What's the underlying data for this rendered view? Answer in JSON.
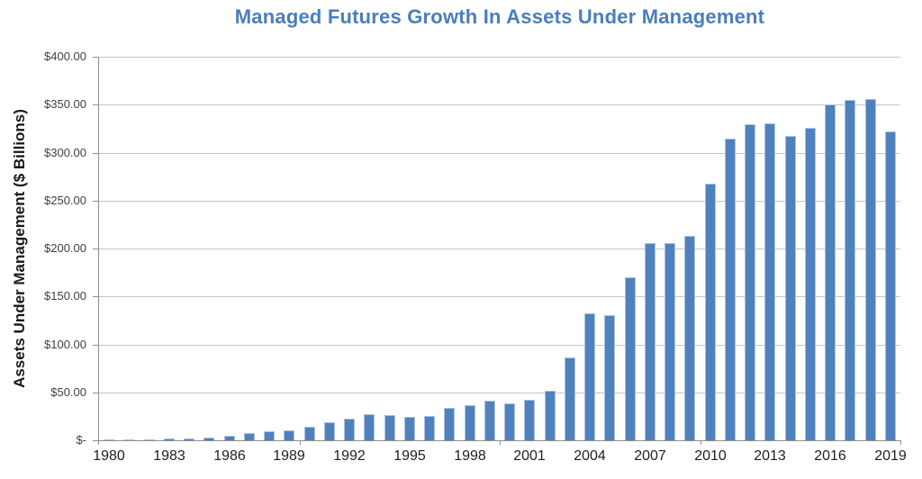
{
  "chart_data": {
    "type": "bar",
    "title": "Managed Futures Growth In Assets Under Management",
    "ylabel": "Assets Under Management ($ Billions)",
    "xlabel": "",
    "legend": "none",
    "grid": "horizontal",
    "ylim": [
      0,
      400
    ],
    "y_tick_step": 50,
    "y_tick_labels": [
      "$-",
      "$50.00",
      "$100.00",
      "$150.00",
      "$200.00",
      "$250.00",
      "$300.00",
      "$350.00",
      "$400.00"
    ],
    "x_tick_labels": [
      "1980",
      "1983",
      "1986",
      "1989",
      "1992",
      "1995",
      "1998",
      "2001",
      "2004",
      "2007",
      "2010",
      "2013",
      "2016",
      "2019"
    ],
    "x_label_interval": 3,
    "years": [
      1980,
      1981,
      1982,
      1983,
      1984,
      1985,
      1986,
      1987,
      1988,
      1989,
      1990,
      1991,
      1992,
      1993,
      1994,
      1995,
      1996,
      1997,
      1998,
      1999,
      2000,
      2001,
      2002,
      2003,
      2004,
      2005,
      2006,
      2007,
      2008,
      2009,
      2010,
      2011,
      2012,
      2013,
      2014,
      2015,
      2016,
      2017,
      2018,
      2019
    ],
    "values": [
      0.5,
      0.8,
      1.2,
      1.8,
      2.2,
      3.0,
      4.5,
      7.5,
      9.0,
      10.5,
      14.0,
      18.5,
      23.0,
      27.0,
      26.0,
      24.5,
      25.0,
      34.0,
      37.0,
      41.5,
      38.5,
      42.0,
      52.0,
      86.5,
      132.0,
      130.5,
      169.5,
      206.0,
      206.0,
      213.5,
      267.5,
      314.5,
      329.5,
      330.5,
      317.0,
      326.0,
      350.0,
      354.5,
      355.5,
      322.0
    ],
    "series_name": "Assets Under Management ($ Billions)",
    "bar_color": "#4F81BD",
    "bar_edge_color": "#A9C2E1",
    "title_color": "#4A7EBB",
    "gridline_color": "#C6C6C6",
    "axis_color": "#8E8E8E"
  }
}
